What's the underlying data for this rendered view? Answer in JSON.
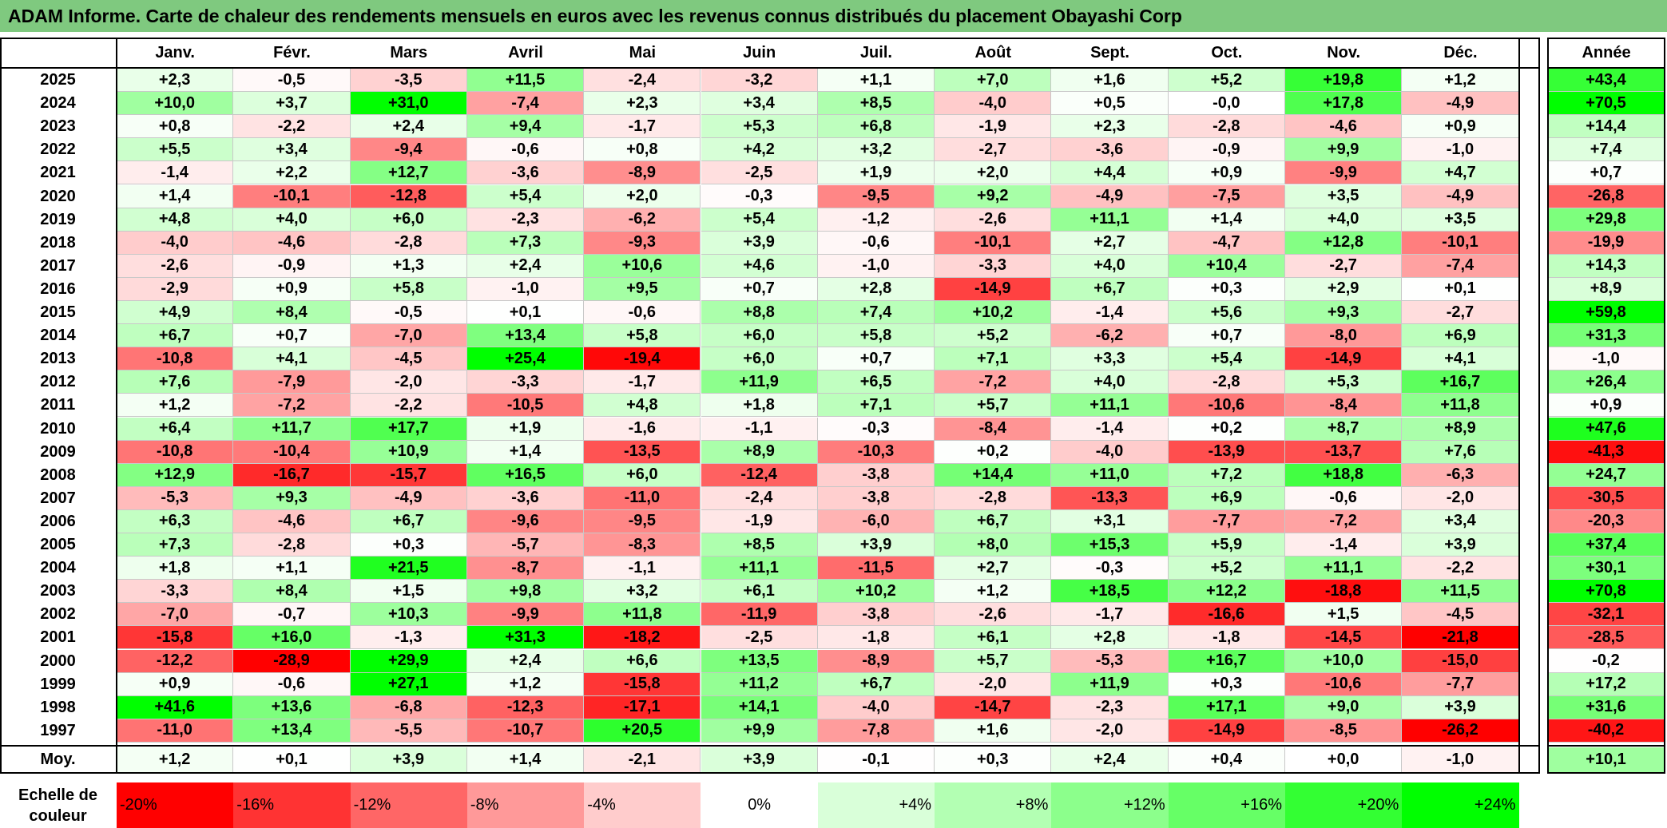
{
  "chart_data": {
    "type": "heatmap",
    "title": "ADAM Informe. Carte de chaleur des rendements mensuels en euros avec les revenus connus distribués du placement Obayashi Corp",
    "columns": [
      "Janv.",
      "Févr.",
      "Mars",
      "Avril",
      "Mai",
      "Juin",
      "Juil.",
      "Août",
      "Sept.",
      "Oct.",
      "Nov.",
      "Déc."
    ],
    "annual_header": "Année",
    "rows": [
      {
        "year": "2025",
        "values": [
          "+2,3",
          "-0,5",
          "-3,5",
          "+11,5",
          "-2,4",
          "-3,2",
          "+1,1",
          "+7,0",
          "+1,6",
          "+5,2",
          "+19,8",
          "+1,2"
        ],
        "annual": "+43,4"
      },
      {
        "year": "2024",
        "values": [
          "+10,0",
          "+3,7",
          "+31,0",
          "-7,4",
          "+2,3",
          "+3,4",
          "+8,5",
          "-4,0",
          "+0,5",
          "-0,0",
          "+17,8",
          "-4,9"
        ],
        "annual": "+70,5"
      },
      {
        "year": "2023",
        "values": [
          "+0,8",
          "-2,2",
          "+2,4",
          "+9,4",
          "-1,7",
          "+5,3",
          "+6,8",
          "-1,9",
          "+2,3",
          "-2,8",
          "-4,6",
          "+0,9"
        ],
        "annual": "+14,4"
      },
      {
        "year": "2022",
        "values": [
          "+5,5",
          "+3,4",
          "-9,4",
          "-0,6",
          "+0,8",
          "+4,2",
          "+3,2",
          "-2,7",
          "-3,6",
          "-0,9",
          "+9,9",
          "-1,0"
        ],
        "annual": "+7,4"
      },
      {
        "year": "2021",
        "values": [
          "-1,4",
          "+2,2",
          "+12,7",
          "-3,6",
          "-8,9",
          "-2,5",
          "+1,9",
          "+2,0",
          "+4,4",
          "+0,9",
          "-9,9",
          "+4,7"
        ],
        "annual": "+0,7"
      },
      {
        "year": "2020",
        "values": [
          "+1,4",
          "-10,1",
          "-12,8",
          "+5,4",
          "+2,0",
          "-0,3",
          "-9,5",
          "+9,2",
          "-4,9",
          "-7,5",
          "+3,5",
          "-4,9"
        ],
        "annual": "-26,8"
      },
      {
        "year": "2019",
        "values": [
          "+4,8",
          "+4,0",
          "+6,0",
          "-2,3",
          "-6,2",
          "+5,4",
          "-1,2",
          "-2,6",
          "+11,1",
          "+1,4",
          "+4,0",
          "+3,5"
        ],
        "annual": "+29,8"
      },
      {
        "year": "2018",
        "values": [
          "-4,0",
          "-4,6",
          "-2,8",
          "+7,3",
          "-9,3",
          "+3,9",
          "-0,6",
          "-10,1",
          "+2,7",
          "-4,7",
          "+12,8",
          "-10,1"
        ],
        "annual": "-19,9"
      },
      {
        "year": "2017",
        "values": [
          "-2,6",
          "-0,9",
          "+1,3",
          "+2,4",
          "+10,6",
          "+4,6",
          "-1,0",
          "-3,3",
          "+4,0",
          "+10,4",
          "-2,7",
          "-7,4"
        ],
        "annual": "+14,3"
      },
      {
        "year": "2016",
        "values": [
          "-2,9",
          "+0,9",
          "+5,8",
          "-1,0",
          "+9,5",
          "+0,7",
          "+2,8",
          "-14,9",
          "+6,7",
          "+0,3",
          "+2,9",
          "+0,1"
        ],
        "annual": "+8,9"
      },
      {
        "year": "2015",
        "values": [
          "+4,9",
          "+8,4",
          "-0,5",
          "+0,1",
          "-0,6",
          "+8,8",
          "+7,4",
          "+10,2",
          "-1,4",
          "+5,6",
          "+9,3",
          "-2,7"
        ],
        "annual": "+59,8"
      },
      {
        "year": "2014",
        "values": [
          "+6,7",
          "+0,7",
          "-7,0",
          "+13,4",
          "+5,8",
          "+6,0",
          "+5,8",
          "+5,2",
          "-6,2",
          "+0,7",
          "-8,0",
          "+6,9"
        ],
        "annual": "+31,3"
      },
      {
        "year": "2013",
        "values": [
          "-10,8",
          "+4,1",
          "-4,5",
          "+25,4",
          "-19,4",
          "+6,0",
          "+0,7",
          "+7,1",
          "+3,3",
          "+5,4",
          "-14,9",
          "+4,1"
        ],
        "annual": "-1,0"
      },
      {
        "year": "2012",
        "values": [
          "+7,6",
          "-7,9",
          "-2,0",
          "-3,3",
          "-1,7",
          "+11,9",
          "+6,5",
          "-7,2",
          "+4,0",
          "-2,8",
          "+5,3",
          "+16,7"
        ],
        "annual": "+26,4"
      },
      {
        "year": "2011",
        "values": [
          "+1,2",
          "-7,2",
          "-2,2",
          "-10,5",
          "+4,8",
          "+1,8",
          "+7,1",
          "+5,7",
          "+11,1",
          "-10,6",
          "-8,4",
          "+11,8"
        ],
        "annual": "+0,9"
      },
      {
        "year": "2010",
        "values": [
          "+6,4",
          "+11,7",
          "+17,7",
          "+1,9",
          "-1,6",
          "-1,1",
          "-0,3",
          "-8,4",
          "-1,4",
          "+0,2",
          "+8,7",
          "+8,9"
        ],
        "annual": "+47,6"
      },
      {
        "year": "2009",
        "values": [
          "-10,8",
          "-10,4",
          "+10,9",
          "+1,4",
          "-13,5",
          "+8,9",
          "-10,3",
          "+0,2",
          "-4,0",
          "-13,9",
          "-13,7",
          "+7,6"
        ],
        "annual": "-41,3"
      },
      {
        "year": "2008",
        "values": [
          "+12,9",
          "-16,7",
          "-15,7",
          "+16,5",
          "+6,0",
          "-12,4",
          "-3,8",
          "+14,4",
          "+11,0",
          "+7,2",
          "+18,8",
          "-6,3"
        ],
        "annual": "+24,7"
      },
      {
        "year": "2007",
        "values": [
          "-5,3",
          "+9,3",
          "-4,9",
          "-3,6",
          "-11,0",
          "-2,4",
          "-3,8",
          "-2,8",
          "-13,3",
          "+6,9",
          "-0,6",
          "-2,0"
        ],
        "annual": "-30,5"
      },
      {
        "year": "2006",
        "values": [
          "+6,3",
          "-4,6",
          "+6,7",
          "-9,6",
          "-9,5",
          "-1,9",
          "-6,0",
          "+6,7",
          "+3,1",
          "-7,7",
          "-7,2",
          "+3,4"
        ],
        "annual": "-20,3"
      },
      {
        "year": "2005",
        "values": [
          "+7,3",
          "-2,8",
          "+0,3",
          "-5,7",
          "-8,3",
          "+8,5",
          "+3,9",
          "+8,0",
          "+15,3",
          "+5,9",
          "-1,4",
          "+3,9"
        ],
        "annual": "+37,4"
      },
      {
        "year": "2004",
        "values": [
          "+1,8",
          "+1,1",
          "+21,5",
          "-8,7",
          "-1,1",
          "+11,1",
          "-11,5",
          "+2,7",
          "-0,3",
          "+5,2",
          "+11,1",
          "-2,2"
        ],
        "annual": "+30,1"
      },
      {
        "year": "2003",
        "values": [
          "-3,3",
          "+8,4",
          "+1,5",
          "+9,8",
          "+3,2",
          "+6,1",
          "+10,2",
          "+1,2",
          "+18,5",
          "+12,2",
          "-18,8",
          "+11,5"
        ],
        "annual": "+70,8"
      },
      {
        "year": "2002",
        "values": [
          "-7,0",
          "-0,7",
          "+10,3",
          "-9,9",
          "+11,8",
          "-11,9",
          "-3,8",
          "-2,6",
          "-1,7",
          "-16,6",
          "+1,5",
          "-4,5"
        ],
        "annual": "-32,1"
      },
      {
        "year": "2001",
        "values": [
          "-15,8",
          "+16,0",
          "-1,3",
          "+31,3",
          "-18,2",
          "-2,5",
          "-1,8",
          "+6,1",
          "+2,8",
          "-1,8",
          "-14,5",
          "-21,8"
        ],
        "annual": "-28,5"
      },
      {
        "year": "2000",
        "values": [
          "-12,2",
          "-28,9",
          "+29,9",
          "+2,4",
          "+6,6",
          "+13,5",
          "-8,9",
          "+5,7",
          "-5,3",
          "+16,7",
          "+10,0",
          "-15,0"
        ],
        "annual": "-0,2"
      },
      {
        "year": "1999",
        "values": [
          "+0,9",
          "-0,6",
          "+27,1",
          "+1,2",
          "-15,8",
          "+11,2",
          "+6,7",
          "-2,0",
          "+11,9",
          "+0,3",
          "-10,6",
          "-7,7"
        ],
        "annual": "+17,2"
      },
      {
        "year": "1998",
        "values": [
          "+41,6",
          "+13,6",
          "-6,8",
          "-12,3",
          "-17,1",
          "+14,1",
          "-4,0",
          "-14,7",
          "-2,3",
          "+17,1",
          "+9,0",
          "+3,9"
        ],
        "annual": "+31,6"
      },
      {
        "year": "1997",
        "values": [
          "-11,0",
          "+13,4",
          "-5,5",
          "-10,7",
          "+20,5",
          "+9,9",
          "-7,8",
          "+1,6",
          "-2,0",
          "-14,9",
          "-8,5",
          "-26,2"
        ],
        "annual": "-40,2"
      }
    ],
    "average": {
      "label": "Moy.",
      "values": [
        "+1,2",
        "+0,1",
        "+3,9",
        "+1,4",
        "-2,1",
        "+3,9",
        "-0,1",
        "+0,3",
        "+2,4",
        "+0,4",
        "+0,0",
        "-1,0"
      ],
      "annual": "+10,1"
    },
    "color_scale": {
      "label": "Echelle de couleur",
      "stops": [
        {
          "value": -20,
          "label": "-20%",
          "color": "#ff0000"
        },
        {
          "value": -16,
          "label": "-16%",
          "color": "#ff3333"
        },
        {
          "value": -12,
          "label": "-12%",
          "color": "#ff6666"
        },
        {
          "value": -8,
          "label": "-8%",
          "color": "#ff9999"
        },
        {
          "value": -4,
          "label": "-4%",
          "color": "#ffcccc"
        },
        {
          "value": 0,
          "label": "0%",
          "color": "#ffffff"
        },
        {
          "value": 4,
          "label": "+4%",
          "color": "#d9ffd9"
        },
        {
          "value": 8,
          "label": "+8%",
          "color": "#b3ffb3"
        },
        {
          "value": 12,
          "label": "+12%",
          "color": "#8cff8c"
        },
        {
          "value": 16,
          "label": "+16%",
          "color": "#66ff66"
        },
        {
          "value": 20,
          "label": "+20%",
          "color": "#33ff33"
        },
        {
          "value": 24,
          "label": "+24%",
          "color": "#00ff00"
        }
      ]
    }
  }
}
